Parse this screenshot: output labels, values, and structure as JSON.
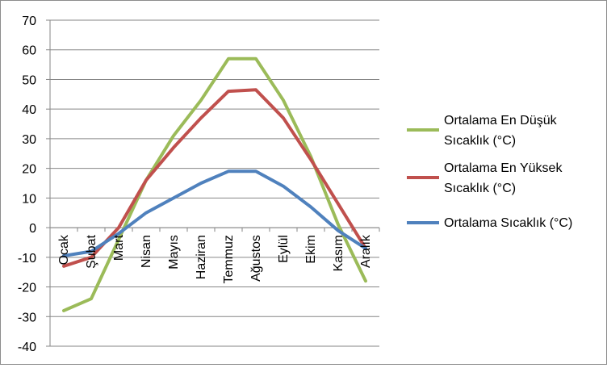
{
  "chart_data": {
    "type": "line",
    "categories": [
      "Ocak",
      "Şubat",
      "Mart",
      "Nisan",
      "Mayıs",
      "Haziran",
      "Temmuz",
      "Ağustos",
      "Eylül",
      "Ekim",
      "Kasım",
      "Aralık"
    ],
    "series": [
      {
        "name_lines": [
          "Ortalama En Düşük",
          "Sıcaklık (°C)"
        ],
        "color": "#9bbb59",
        "values": [
          -28,
          -24,
          -4,
          16,
          31,
          43,
          57,
          57,
          43,
          24,
          1,
          -18
        ]
      },
      {
        "name_lines": [
          "Ortalama En Yüksek",
          "Sıcaklık (°C)"
        ],
        "color": "#c0504d",
        "values": [
          -13,
          -10,
          0,
          16,
          27,
          37,
          46,
          46.5,
          37,
          23,
          8,
          -7
        ]
      },
      {
        "name_lines": [
          "Ortalama Sıcaklık (°C)"
        ],
        "color": "#4f81bd",
        "values": [
          -9.5,
          -8,
          -2,
          5,
          10,
          15,
          19,
          19,
          14,
          7,
          -1,
          -7
        ]
      }
    ],
    "ylim": [
      -40,
      70
    ],
    "y_ticks": [
      70,
      60,
      50,
      40,
      30,
      20,
      10,
      0,
      -10,
      -20,
      -30,
      -40
    ],
    "grid": "horizontal",
    "legend_position": "right"
  }
}
